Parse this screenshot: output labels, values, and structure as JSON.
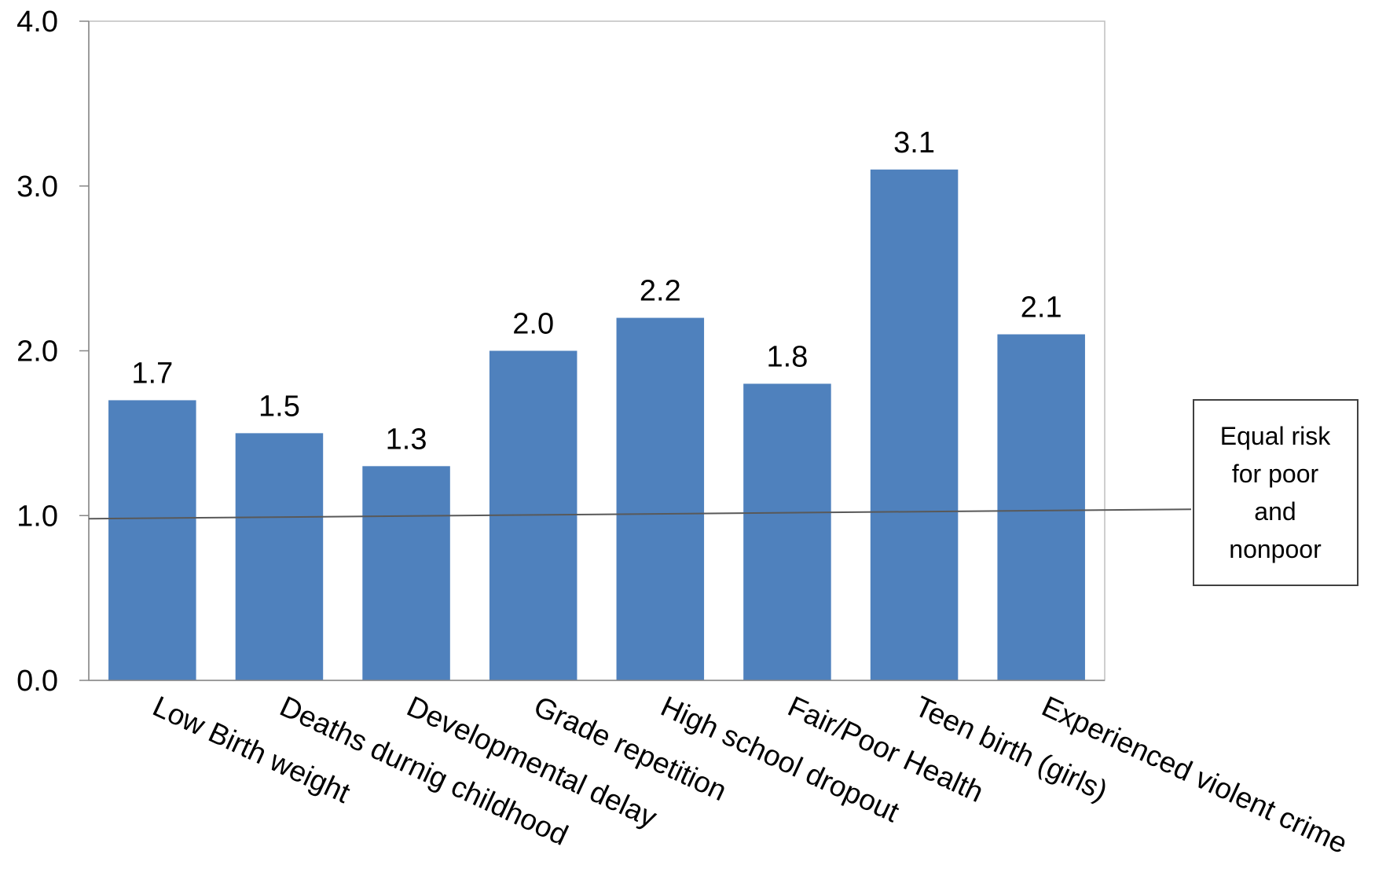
{
  "chart_data": {
    "type": "bar",
    "categories": [
      "Low Birth weight",
      "Deaths durnig childhood",
      "Developmental delay",
      "Grade repetition",
      "High school dropout",
      "Fair/Poor Health",
      "Teen birth (girls)",
      "Experienced violent crime"
    ],
    "values": [
      1.7,
      1.5,
      1.3,
      2.0,
      2.2,
      1.8,
      3.1,
      2.1
    ],
    "data_labels": [
      "1.7",
      "1.5",
      "1.3",
      "2.0",
      "2.2",
      "1.8",
      "3.1",
      "2.1"
    ],
    "yticks": [
      "0.0",
      "1.0",
      "2.0",
      "3.0",
      "4.0"
    ],
    "ylim": [
      0,
      4
    ],
    "bar_color": "#4F81BD",
    "reference_line": {
      "value": 1.0,
      "color": "#595959",
      "label_lines": [
        "Equal risk",
        "for poor",
        "and",
        "nonpoor"
      ]
    },
    "grid": false,
    "legend": "none",
    "title": "",
    "xlabel": "",
    "ylabel": ""
  }
}
